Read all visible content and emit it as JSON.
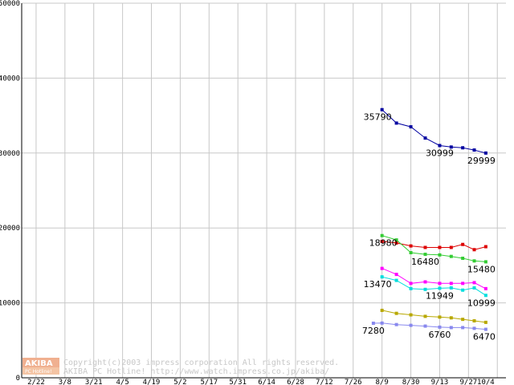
{
  "chart_data": {
    "type": "line",
    "title": "",
    "xlabel": "",
    "ylabel": "",
    "ylim": [
      0,
      50000
    ],
    "y_ticks": [
      0,
      10000,
      20000,
      30000,
      40000,
      50000
    ],
    "x_tick_labels": [
      "2/22",
      "3/8",
      "3/21",
      "4/5",
      "4/19",
      "5/2",
      "5/17",
      "5/31",
      "6/14",
      "6/28",
      "7/12",
      "7/26",
      "8/9",
      "8/30",
      "9/13",
      "9/27",
      "10/4"
    ],
    "x_tick_positions": [
      0,
      1,
      2,
      3,
      4,
      5,
      6,
      7,
      8,
      9,
      10,
      11,
      12,
      13,
      14,
      15,
      15.6
    ],
    "x_grid_positions": [
      0,
      1,
      2,
      3,
      4,
      5,
      6,
      7,
      8,
      9,
      10,
      11,
      12,
      13,
      14,
      15,
      16
    ],
    "x_range": [
      -0.5,
      16.3
    ],
    "grid": true,
    "series": [
      {
        "name": "series-blue",
        "color": "#0000a0",
        "x": [
          12,
          12.5,
          13,
          13.5,
          14,
          14.4,
          14.8,
          15.2,
          15.6
        ],
        "values": [
          35790,
          34000,
          33500,
          32000,
          30999,
          30800,
          30700,
          30400,
          29999
        ]
      },
      {
        "name": "series-red",
        "color": "#dd0000",
        "x": [
          12,
          12.5,
          13,
          13.5,
          14,
          14.4,
          14.8,
          15.2,
          15.6
        ],
        "values": [
          18200,
          18000,
          17600,
          17400,
          17400,
          17400,
          17800,
          17100,
          17500
        ]
      },
      {
        "name": "series-green",
        "color": "#33cc33",
        "x": [
          12,
          12.5,
          13,
          13.5,
          14,
          14.4,
          14.8,
          15.2,
          15.6
        ],
        "values": [
          18980,
          18400,
          16700,
          16480,
          16400,
          16200,
          15950,
          15600,
          15480
        ]
      },
      {
        "name": "series-magenta",
        "color": "#ff00ff",
        "x": [
          12,
          12.5,
          13,
          13.5,
          14,
          14.4,
          14.8,
          15.2,
          15.6
        ],
        "values": [
          14600,
          13800,
          12600,
          12800,
          12600,
          12600,
          12600,
          12700,
          11900
        ]
      },
      {
        "name": "series-cyan",
        "color": "#00dddd",
        "x": [
          12,
          12.5,
          13,
          13.5,
          14,
          14.4,
          14.8,
          15.2,
          15.6
        ],
        "values": [
          13470,
          13000,
          11900,
          11800,
          11949,
          12000,
          11700,
          12000,
          10999
        ]
      },
      {
        "name": "series-olive",
        "color": "#b8a800",
        "x": [
          12,
          12.5,
          13,
          13.5,
          14,
          14.4,
          14.8,
          15.2,
          15.6
        ],
        "values": [
          9000,
          8600,
          8400,
          8200,
          8100,
          8000,
          7800,
          7600,
          7400
        ]
      },
      {
        "name": "series-lavender",
        "color": "#8888ee",
        "x": [
          11.7,
          12,
          12.5,
          13,
          13.5,
          14,
          14.4,
          14.8,
          15.2,
          15.6
        ],
        "values": [
          7280,
          7300,
          7100,
          7000,
          6900,
          6760,
          6700,
          6700,
          6600,
          6470
        ]
      }
    ],
    "annotations": [
      {
        "text": "35790",
        "x": 12,
        "y": 35790,
        "anchor": "end",
        "pos": "below"
      },
      {
        "text": "30999",
        "x": 14,
        "y": 30999,
        "anchor": "middle",
        "pos": "below"
      },
      {
        "text": "29999",
        "x": 15.6,
        "y": 29999,
        "anchor": "end",
        "pos": "below"
      },
      {
        "text": "18980",
        "x": 12,
        "y": 18980,
        "anchor": "start",
        "pos": "below"
      },
      {
        "text": "16480",
        "x": 13.5,
        "y": 16480,
        "anchor": "middle",
        "pos": "below"
      },
      {
        "text": "15480",
        "x": 15.6,
        "y": 15480,
        "anchor": "end",
        "pos": "below"
      },
      {
        "text": "13470",
        "x": 12,
        "y": 13470,
        "anchor": "end",
        "pos": "below"
      },
      {
        "text": "11949",
        "x": 14,
        "y": 11949,
        "anchor": "middle",
        "pos": "below"
      },
      {
        "text": "10999",
        "x": 15.6,
        "y": 10999,
        "anchor": "end",
        "pos": "below"
      },
      {
        "text": "7280",
        "x": 11.7,
        "y": 7280,
        "anchor": "middle",
        "pos": "below"
      },
      {
        "text": "6760",
        "x": 14,
        "y": 6760,
        "anchor": "middle",
        "pos": "below"
      },
      {
        "text": "6470",
        "x": 15.6,
        "y": 6470,
        "anchor": "end",
        "pos": "below"
      }
    ]
  },
  "watermark": {
    "logo_main": "AKIBA",
    "logo_sub": "PC Hotline!",
    "line1": "Copyright(c)2003 impress corporation All rights reserved.",
    "line2": "AKIBA PC Hotline!  http://www.watch.impress.co.jp/akiba/",
    "logo_color": "#f0b090"
  }
}
